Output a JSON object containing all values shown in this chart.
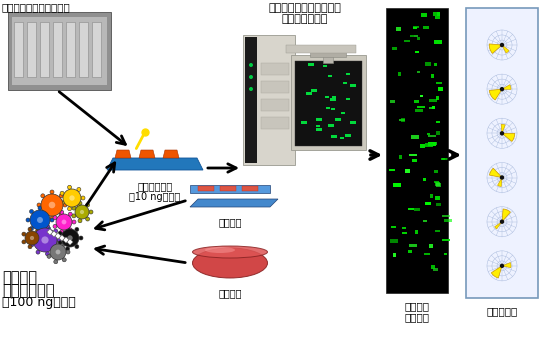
{
  "bg_color": "#ffffff",
  "title_text": "レクチンマイクロアレイ",
  "scanner_label_line1": "エバネッセント波励起型",
  "scanner_label_line2": "荧光スキャナー",
  "reaction_label_line1": "相互作用反応",
  "reaction_label_line2": "（10 ng程度）",
  "tissue_label": "組織切片",
  "cell_label": "培養細胞",
  "glyco_label_line1": "蝧光標識",
  "glyco_label_line2": "糖タンパク質",
  "glyco_label_line3": "（100 ng程度）",
  "scan_label_line1": "スキャン",
  "scan_label_line2": "イメージ",
  "data_label": "データ処理",
  "fig_width": 5.4,
  "fig_height": 3.38,
  "dpi": 100
}
